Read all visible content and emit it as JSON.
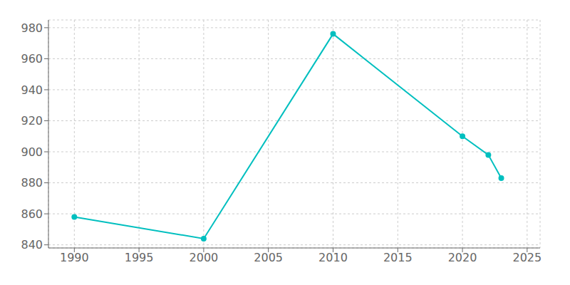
{
  "chart_data": {
    "type": "line",
    "x": [
      1990,
      2000,
      2010,
      2020,
      2022,
      2023
    ],
    "values": [
      858,
      844,
      976,
      910,
      898,
      883
    ],
    "color": "#00BFBF",
    "marker": "circle",
    "xlim": [
      1988,
      2026
    ],
    "ylim": [
      838,
      985
    ],
    "xticks": [
      1990,
      1995,
      2000,
      2005,
      2010,
      2015,
      2020,
      2025
    ],
    "yticks": [
      840,
      860,
      880,
      900,
      920,
      940,
      960,
      980
    ],
    "grid": true
  }
}
